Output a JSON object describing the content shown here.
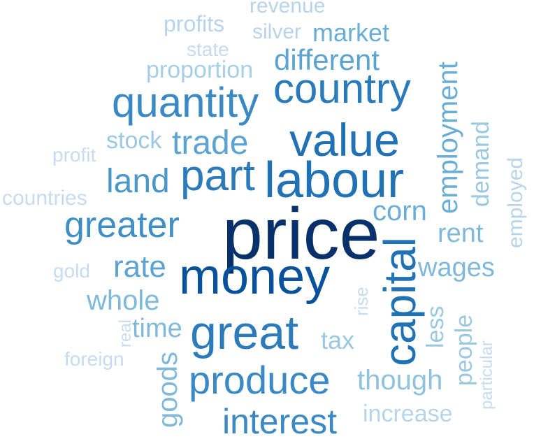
{
  "words": [
    {
      "text": "price",
      "color": "#08306b"
    },
    {
      "text": "money",
      "color": "#08519c"
    },
    {
      "text": "value",
      "color": "#2171b5"
    },
    {
      "text": "labour",
      "color": "#2171b5"
    },
    {
      "text": "country",
      "color": "#2b7bba"
    },
    {
      "text": "capital",
      "color": "#2171b5"
    },
    {
      "text": "great",
      "color": "#2b7bba"
    },
    {
      "text": "part",
      "color": "#2b7bba"
    },
    {
      "text": "quantity",
      "color": "#3a88c4"
    },
    {
      "text": "produce",
      "color": "#3a88c4"
    },
    {
      "text": "greater",
      "color": "#3f8fc5"
    },
    {
      "text": "interest",
      "color": "#3a88c4"
    },
    {
      "text": "trade",
      "color": "#5ba3d0"
    },
    {
      "text": "different",
      "color": "#5ba3d0"
    },
    {
      "text": "land",
      "color": "#4a98c9"
    },
    {
      "text": "rate",
      "color": "#5ba3d0"
    },
    {
      "text": "corn",
      "color": "#6aaed6"
    },
    {
      "text": "market",
      "color": "#6aaed6"
    },
    {
      "text": "employment",
      "color": "#6aaed6"
    },
    {
      "text": "wages",
      "color": "#7fb9da"
    },
    {
      "text": "rent",
      "color": "#7fb9da"
    },
    {
      "text": "whole",
      "color": "#7fb9da"
    },
    {
      "text": "time",
      "color": "#7fb9da"
    },
    {
      "text": "goods",
      "color": "#7fb9da"
    },
    {
      "text": "tax",
      "color": "#9ac8e0"
    },
    {
      "text": "though",
      "color": "#8fc2de"
    },
    {
      "text": "stock",
      "color": "#9ac8e0"
    },
    {
      "text": "demand",
      "color": "#9ac8e0"
    },
    {
      "text": "people",
      "color": "#9ac8e0"
    },
    {
      "text": "less",
      "color": "#9ac8e0"
    },
    {
      "text": "proportion",
      "color": "#a6cee4"
    },
    {
      "text": "employed",
      "color": "#b7d4ea"
    },
    {
      "text": "increase",
      "color": "#b7d4ea"
    },
    {
      "text": "profits",
      "color": "#b7d4ea"
    },
    {
      "text": "silver",
      "color": "#b7d4ea"
    },
    {
      "text": "revenue",
      "color": "#b7d4ea"
    },
    {
      "text": "state",
      "color": "#c6dbef"
    },
    {
      "text": "countries",
      "color": "#c6dbef"
    },
    {
      "text": "profit",
      "color": "#c6dbef"
    },
    {
      "text": "gold",
      "color": "#c6dbef"
    },
    {
      "text": "foreign",
      "color": "#c6dbef"
    },
    {
      "text": "rise",
      "color": "#c6dbef"
    },
    {
      "text": "real",
      "color": "#c6dbef"
    },
    {
      "text": "particular",
      "color": "#c6dbef"
    }
  ]
}
